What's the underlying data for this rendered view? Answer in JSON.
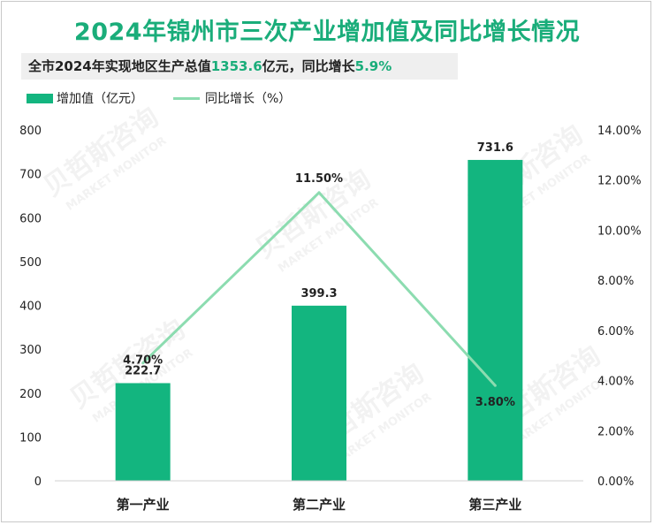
{
  "header": {
    "title": "2024年锦州市三次产业增加值及同比增长情况",
    "subtitle_prefix": "全市2024年实现地区生产总值",
    "subtitle_gdp": "1353.6",
    "subtitle_mid": "亿元，同比增长",
    "subtitle_growth": "5.9%"
  },
  "colors": {
    "accent": "#1aad7a",
    "bar": "#13b57f",
    "line": "#8cdcb0"
  },
  "watermark": {
    "brand": "贝哲斯咨询",
    "english": "MARKET MONITOR"
  },
  "chart_data": {
    "type": "bar",
    "categories": [
      "第一产业",
      "第二产业",
      "第三产业"
    ],
    "series": [
      {
        "name": "增加值（亿元）",
        "type": "bar",
        "axis": "left",
        "values": [
          222.7,
          399.3,
          731.6
        ],
        "labels": [
          "222.7",
          "399.3",
          "731.6"
        ]
      },
      {
        "name": "同比增长（%）",
        "type": "line",
        "axis": "right",
        "values": [
          4.7,
          11.5,
          3.8
        ],
        "labels": [
          "4.70%",
          "11.50%",
          "3.80%"
        ]
      }
    ],
    "y_left": {
      "range": [
        0,
        800
      ],
      "ticks": [
        "0",
        "100",
        "200",
        "300",
        "400",
        "500",
        "600",
        "700",
        "800"
      ]
    },
    "y_right": {
      "range": [
        0,
        14
      ],
      "ticks": [
        "0.00%",
        "2.00%",
        "4.00%",
        "6.00%",
        "8.00%",
        "10.00%",
        "12.00%",
        "14.00%"
      ]
    },
    "grid": false,
    "legend_position": "top-left"
  }
}
